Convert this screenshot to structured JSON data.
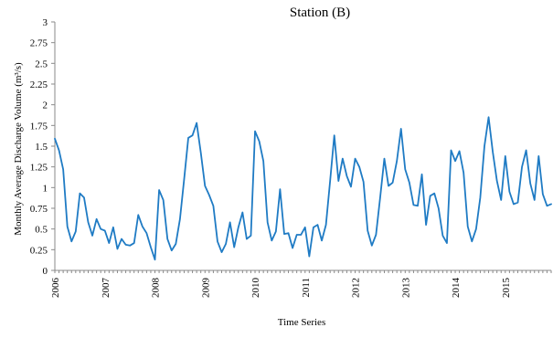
{
  "chart_data": {
    "type": "line",
    "title": "Station (B)",
    "xlabel": "Time Series",
    "ylabel": "Monthly Average Discharge Volume (m³/s)",
    "ylim": [
      0,
      3
    ],
    "ytick_labels": [
      "0",
      "0.25",
      "0.5",
      "0.75",
      "1",
      "1.25",
      "1.5",
      "1.75",
      "2",
      "2.25",
      "2.5",
      "2.75",
      "3"
    ],
    "xtick_labels": [
      "2006",
      "2007",
      "2008",
      "2009",
      "2010",
      "2011",
      "2012",
      "2013",
      "2014",
      "2015"
    ],
    "x_start": "2006-01",
    "grid": false,
    "line_color": "#1f7bc4",
    "series": [
      {
        "values": [
          1.59,
          1.45,
          1.22,
          0.53,
          0.35,
          0.47,
          0.93,
          0.88,
          0.58,
          0.42,
          0.62,
          0.5,
          0.48,
          0.33,
          0.52,
          0.26,
          0.38,
          0.31,
          0.3,
          0.33,
          0.67,
          0.53,
          0.45,
          0.28,
          0.13,
          0.97,
          0.85,
          0.38,
          0.24,
          0.32,
          0.62,
          1.1,
          1.6,
          1.63,
          1.78,
          1.42,
          1.02,
          0.91,
          0.78,
          0.35,
          0.22,
          0.32,
          0.58,
          0.28,
          0.52,
          0.7,
          0.38,
          0.42,
          1.68,
          1.56,
          1.32,
          0.58,
          0.36,
          0.47,
          0.98,
          0.44,
          0.45,
          0.27,
          0.43,
          0.43,
          0.52,
          0.17,
          0.52,
          0.55,
          0.36,
          0.55,
          1.08,
          1.63,
          1.08,
          1.35,
          1.14,
          1.01,
          1.35,
          1.25,
          1.07,
          0.48,
          0.3,
          0.43,
          0.88,
          1.35,
          1.02,
          1.06,
          1.32,
          1.71,
          1.22,
          1.06,
          0.79,
          0.78,
          1.16,
          0.55,
          0.9,
          0.93,
          0.75,
          0.42,
          0.33,
          1.45,
          1.32,
          1.44,
          1.18,
          0.53,
          0.35,
          0.5,
          0.88,
          1.5,
          1.85,
          1.43,
          1.08,
          0.85,
          1.38,
          0.95,
          0.8,
          0.82,
          1.25,
          1.45,
          1.05,
          0.85,
          1.38,
          0.92,
          0.78,
          0.8
        ]
      }
    ]
  }
}
